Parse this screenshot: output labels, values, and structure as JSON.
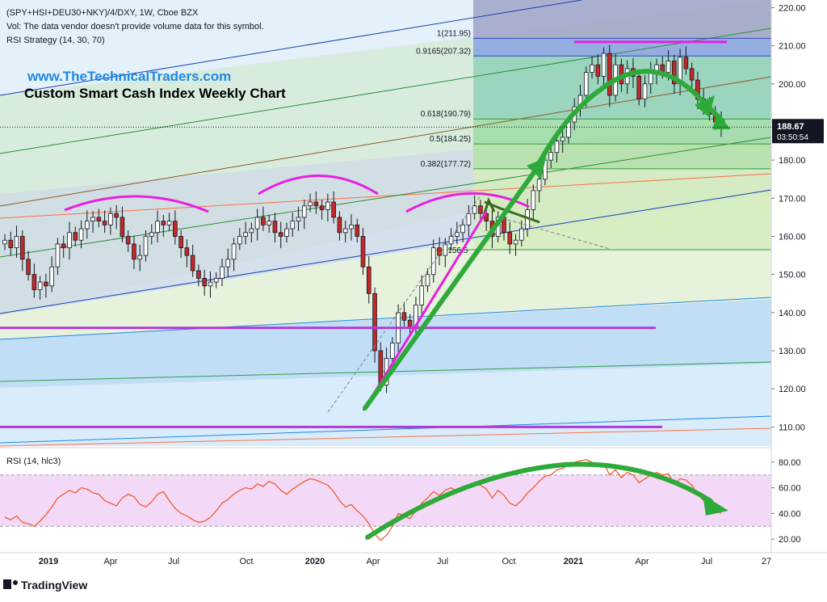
{
  "header": {
    "symbol_line": "(SPY+HSI+DEU30+NKY)/4/DXY, 1W, Cboe BZX",
    "volume_note": "Vol: The data vendor doesn't provide volume data for this symbol.",
    "strategy_label": "RSI Strategy (14, 30, 70)",
    "watermark_url": "www.TheTechnicalTraders.com",
    "watermark_title": "Custom Smart Cash Index Weekly Chart"
  },
  "price_axis": {
    "min": 105,
    "max": 222,
    "ticks": [
      "110.00",
      "120.00",
      "130.00",
      "140.00",
      "150.00",
      "160.00",
      "170.00",
      "180.00",
      "190.00",
      "200.00",
      "210.00",
      "220.00"
    ],
    "last_price": "188.67",
    "countdown": "03:50:54"
  },
  "rsi_axis": {
    "title": "RSI (14, hlc3)",
    "ticks": [
      "20.00",
      "40.00",
      "60.00",
      "80.00"
    ],
    "upper_band": 70,
    "lower_band": 30
  },
  "time_axis": {
    "labels": [
      "2019",
      "Apr",
      "Jul",
      "Oct",
      "2020",
      "Apr",
      "Jul",
      "Oct",
      "2021",
      "Apr",
      "Jul",
      "27"
    ],
    "bold_labels": [
      "2019",
      "2020",
      "2021"
    ]
  },
  "fib_levels": [
    {
      "label": "1(211.95)",
      "value": 211.95
    },
    {
      "label": "0.9165(207.32)",
      "value": 207.32
    },
    {
      "label": "0.618(190.79)",
      "value": 190.79
    },
    {
      "label": "0.5(184.25)",
      "value": 184.25
    },
    {
      "label": "0.382(177.72)",
      "value": 177.72
    },
    {
      "label": "(156.5",
      "value": 156.5
    }
  ],
  "brand": "TradingView",
  "colors": {
    "bull_candle": "#ffffff",
    "bear_candle": "#c62828",
    "rsi_line": "#f4511e",
    "rsi_band": "#f3d9f7",
    "arrows": "#2eaa3a",
    "arcs": "#e91ee0",
    "price_flag": "#131722"
  },
  "chart_data": {
    "type": "candlestick",
    "title": "",
    "series": [
      {
        "name": "(SPY+HSI+DEU30+NKY)/4/DXY",
        "values": [
          159,
          157,
          160,
          154,
          150,
          146,
          148,
          147,
          152,
          158,
          157,
          161,
          159,
          162,
          164,
          165,
          164,
          163,
          166,
          165,
          160,
          158,
          154,
          155,
          160,
          161,
          164,
          163,
          164,
          160,
          157,
          155,
          151,
          149,
          147,
          148,
          149,
          152,
          154,
          158,
          160,
          161,
          162,
          165,
          163,
          164,
          161,
          160,
          162,
          164,
          165,
          168,
          169,
          168,
          167,
          169,
          165,
          161,
          162,
          163,
          160,
          152,
          145,
          130,
          121,
          128,
          132,
          140,
          138,
          136,
          142,
          147,
          150,
          157,
          155,
          158,
          160,
          161,
          163,
          166,
          168,
          166,
          164,
          160,
          165,
          161,
          158,
          159,
          162,
          167,
          172,
          175,
          180,
          182,
          185,
          186,
          190,
          194,
          197,
          203,
          205,
          202,
          208,
          197,
          205,
          200,
          204,
          202,
          196,
          200,
          203,
          205,
          203,
          206,
          200,
          207,
          204,
          201,
          196,
          195,
          192,
          190,
          188.67
        ]
      },
      {
        "name": "RSI (14, hlc3)",
        "values": [
          37,
          35,
          38,
          33,
          32,
          30,
          34,
          39,
          45,
          52,
          55,
          58,
          56,
          60,
          59,
          56,
          55,
          50,
          48,
          46,
          52,
          55,
          53,
          47,
          45,
          49,
          55,
          57,
          50,
          44,
          40,
          38,
          35,
          33,
          34,
          37,
          42,
          48,
          51,
          55,
          58,
          60,
          59,
          63,
          61,
          65,
          63,
          58,
          55,
          59,
          62,
          65,
          67,
          66,
          64,
          62,
          57,
          50,
          45,
          47,
          42,
          38,
          32,
          24,
          19,
          23,
          30,
          40,
          38,
          36,
          42,
          48,
          52,
          57,
          54,
          58,
          60,
          57,
          59,
          62,
          63,
          62,
          59,
          52,
          58,
          54,
          48,
          46,
          50,
          56,
          60,
          65,
          69,
          70,
          74,
          75,
          78,
          80,
          81,
          82,
          80,
          77,
          79,
          70,
          74,
          68,
          72,
          70,
          64,
          67,
          70,
          72,
          70,
          71,
          63,
          67,
          66,
          62,
          55,
          50,
          45,
          43,
          40
        ]
      }
    ],
    "x_labels": [
      "2019",
      "Apr",
      "Jul",
      "Oct",
      "2020",
      "Apr",
      "Jul",
      "Oct",
      "2021",
      "Apr",
      "Jul",
      "27"
    ],
    "ylim_price": [
      105,
      222
    ],
    "ylim_rsi": [
      10,
      90
    ],
    "legend": "none"
  }
}
